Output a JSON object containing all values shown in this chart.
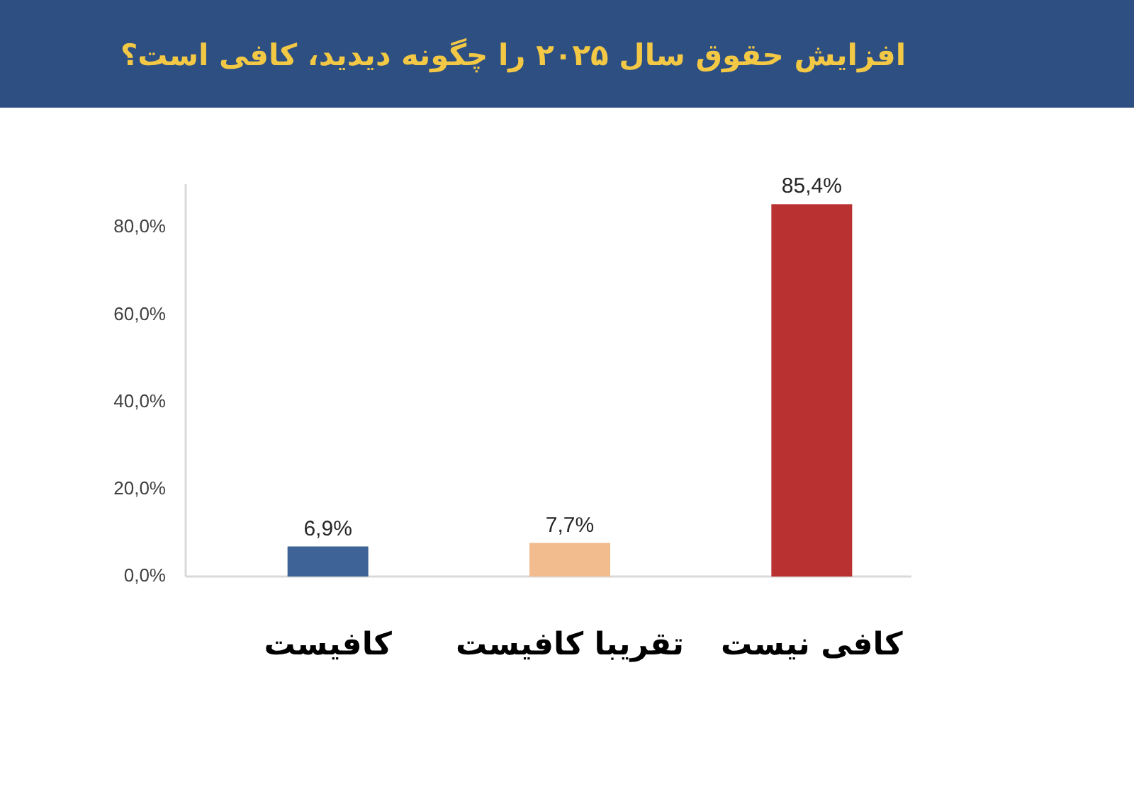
{
  "chart_data": {
    "type": "bar",
    "title": "افزایش حقوق سال ۲۰۲۵ را چگونه دیدید، کافی است؟",
    "categories": [
      "کافیست",
      "تقریبا کافیست",
      "کافی نیست"
    ],
    "values": [
      6.9,
      7.7,
      85.4
    ],
    "colors": [
      "#3e6396",
      "#f2bc8e",
      "#b93131"
    ],
    "value_labels": [
      "6,9%",
      "7,7%",
      "85,4%"
    ],
    "ylim": [
      0,
      90
    ],
    "yticks": [
      {
        "value": 0,
        "label": "0,0%"
      },
      {
        "value": 20,
        "label": "20,0%"
      },
      {
        "value": 40,
        "label": "40,0%"
      },
      {
        "value": 60,
        "label": "60,0%"
      },
      {
        "value": 80,
        "label": "80,0%"
      }
    ]
  }
}
